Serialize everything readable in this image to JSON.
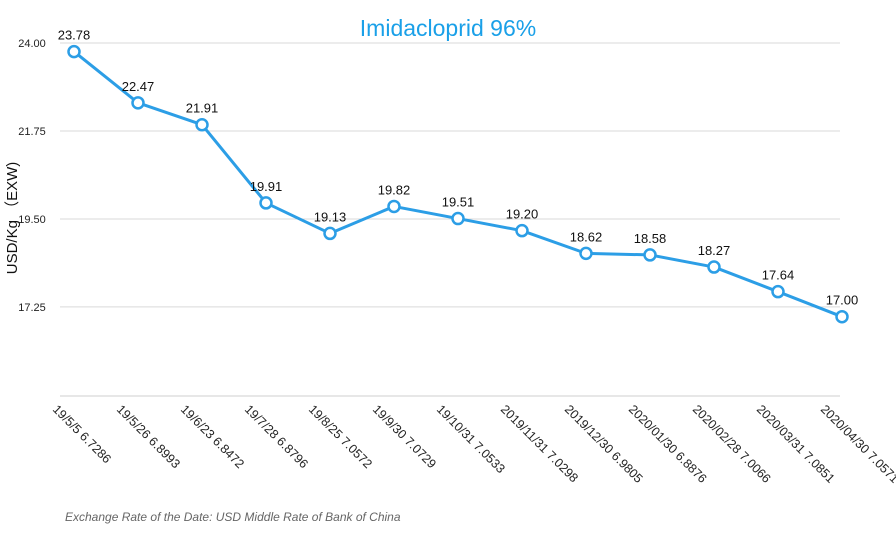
{
  "chart_data": {
    "type": "line",
    "title": "Imidacloprid 96%",
    "ylabel": "USD/Kg （EXW)",
    "xlabel": "",
    "ylim": [
      15.0,
      24.0
    ],
    "yticks": [
      "24.00",
      "21.75",
      "19.50",
      "17.25"
    ],
    "grid": true,
    "categories": [
      "19/5/5 6.7286",
      "19/5/26 6.8993",
      "19/6/23 6.8472",
      "19/7/28 6.8796",
      "19/8/25 7.0572",
      "19/9/30 7.0729",
      "19/10/31 7.0533",
      "2019/11/31 7.0298",
      "2019/12/30 6.9805",
      "2020/01/30 6.8876",
      "2020/02/28 7.0066",
      "2020/03/31 7.0851",
      "2020/04/30 7.0571"
    ],
    "values": [
      23.78,
      22.47,
      21.91,
      19.91,
      19.13,
      19.82,
      19.51,
      19.2,
      18.62,
      18.58,
      18.27,
      17.64,
      17.0
    ],
    "data_labels": [
      "23.78",
      "22.47",
      "21.91",
      "19.91",
      "19.13",
      "19.82",
      "19.51",
      "19.20",
      "18.62",
      "18.58",
      "18.27",
      "17.64",
      "17.00"
    ],
    "line_color": "#2c9ee6",
    "marker_fill": "#ffffff",
    "grid_color": "#d9d9d9",
    "footnote": "Exchange Rate of the Date: USD Middle Rate of Bank of China"
  }
}
